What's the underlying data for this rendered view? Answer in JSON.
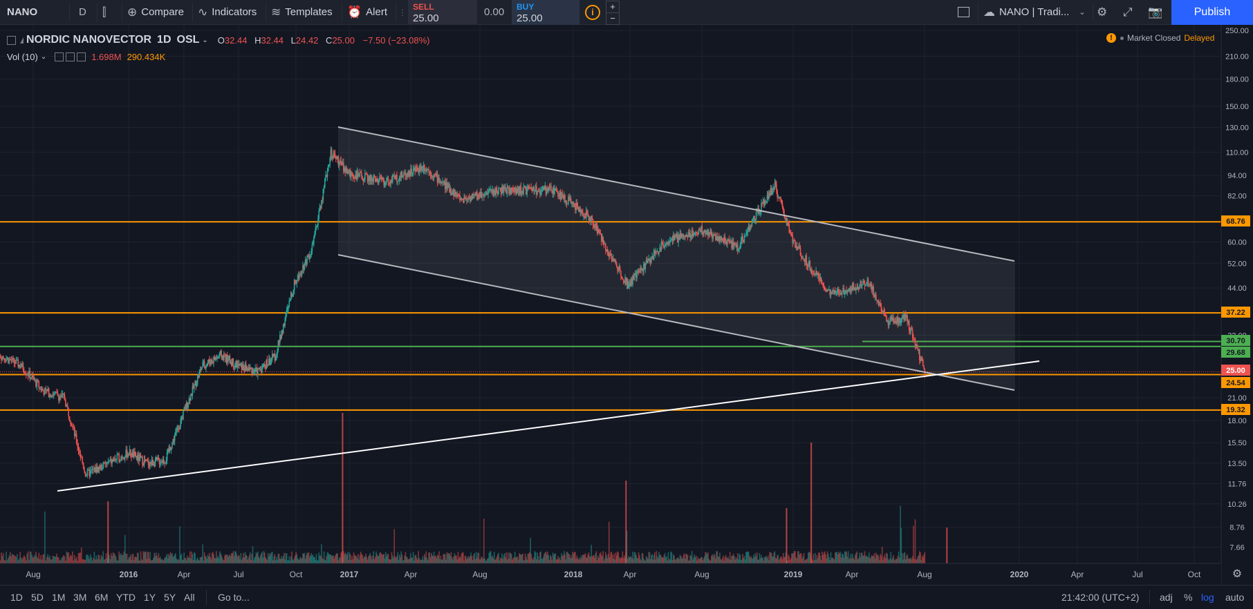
{
  "toolbar": {
    "symbol": "NANO",
    "interval": "D",
    "compare": "Compare",
    "indicators": "Indicators",
    "templates": "Templates",
    "alert": "Alert",
    "sell_label": "SELL",
    "sell_value": "25.00",
    "spread": "0.00",
    "buy_label": "BUY",
    "buy_value": "25.00",
    "plus": "+",
    "minus": "−",
    "layout_name": "NANO | Tradi...",
    "publish": "Publish"
  },
  "legend": {
    "title": "NORDIC NANOVECTOR",
    "interval": "1D",
    "exchange": "OSL",
    "o_label": "O",
    "o": "32.44",
    "h_label": "H",
    "h": "32.44",
    "l_label": "L",
    "l": "24.42",
    "c_label": "C",
    "c": "25.00",
    "change": "−7.50 (−23.08%)",
    "vol_label": "Vol (10)",
    "vol_value1": "1.698M",
    "vol_value2": "290.434K"
  },
  "status": {
    "market": "Market Closed",
    "delayed": "Delayed"
  },
  "colors": {
    "background": "#131722",
    "up": "#26a69a",
    "down": "#ef5350",
    "orange_line": "#ff9800",
    "green_line": "#4caf50",
    "publish": "#2962ff"
  },
  "chart_data": {
    "type": "candlestick",
    "scale": "log",
    "price_axis": [
      "250.00",
      "210.00",
      "180.00",
      "150.00",
      "130.00",
      "110.00",
      "94.00",
      "82.00",
      "60.00",
      "52.00",
      "44.00",
      "32.00",
      "21.00",
      "18.00",
      "15.50",
      "13.50",
      "11.76",
      "10.26",
      "8.76",
      "7.66"
    ],
    "time_axis": [
      "Aug",
      "2016",
      "Apr",
      "Jul",
      "Oct",
      "2017",
      "Apr",
      "Aug",
      "2018",
      "Apr",
      "Aug",
      "2019",
      "Apr",
      "Aug",
      "2020",
      "Apr",
      "Jul",
      "Oct"
    ],
    "horizontal_levels": [
      {
        "label": "68.76",
        "value": 68.76,
        "color": "#ff9800"
      },
      {
        "label": "37.22",
        "value": 37.22,
        "color": "#ff9800"
      },
      {
        "label": "30.70",
        "value": 30.7,
        "color": "#4caf50"
      },
      {
        "label": "29.68",
        "value": 29.68,
        "color": "#4caf50"
      },
      {
        "label": "25.00",
        "value": 25.0,
        "color": "#ef5350"
      },
      {
        "label": "24.54",
        "value": 24.54,
        "color": "#ff9800"
      },
      {
        "label": "19.32",
        "value": 19.32,
        "color": "#ff9800"
      }
    ],
    "approx_close_path": [
      [
        "2015-06",
        32
      ],
      [
        "2015-07",
        28
      ],
      [
        "2015-08",
        26
      ],
      [
        "2015-09",
        22
      ],
      [
        "2015-10",
        21
      ],
      [
        "2015-11",
        12.5
      ],
      [
        "2016-01",
        14.5
      ],
      [
        "2016-02",
        13.5
      ],
      [
        "2016-03",
        13.8
      ],
      [
        "2016-04",
        19
      ],
      [
        "2016-05",
        26
      ],
      [
        "2016-06",
        28
      ],
      [
        "2016-07",
        26
      ],
      [
        "2016-08",
        25
      ],
      [
        "2016-09",
        28
      ],
      [
        "2016-10",
        45
      ],
      [
        "2016-11",
        58
      ],
      [
        "2016-12",
        110
      ],
      [
        "2017-01",
        95
      ],
      [
        "2017-03",
        90
      ],
      [
        "2017-05",
        100
      ],
      [
        "2017-07",
        80
      ],
      [
        "2017-09",
        85
      ],
      [
        "2017-12",
        85
      ],
      [
        "2018-02",
        70
      ],
      [
        "2018-03",
        55
      ],
      [
        "2018-04",
        45
      ],
      [
        "2018-06",
        60
      ],
      [
        "2018-08",
        65
      ],
      [
        "2018-10",
        58
      ],
      [
        "2018-11",
        72
      ],
      [
        "2018-12",
        88
      ],
      [
        "2019-01",
        60
      ],
      [
        "2019-02",
        50
      ],
      [
        "2019-03",
        42
      ],
      [
        "2019-05",
        46
      ],
      [
        "2019-06",
        35
      ],
      [
        "2019-07",
        36
      ],
      [
        "2019-08",
        25
      ]
    ]
  },
  "bottombar": {
    "ranges": [
      "1D",
      "5D",
      "1M",
      "3M",
      "6M",
      "YTD",
      "1Y",
      "5Y",
      "All"
    ],
    "goto": "Go to...",
    "time": "21:42:00 (UTC+2)",
    "adj": "adj",
    "percent": "%",
    "log": "log",
    "auto": "auto"
  }
}
